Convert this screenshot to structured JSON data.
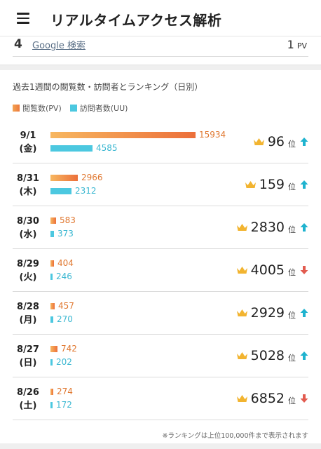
{
  "header": {
    "title": "リアルタイムアクセス解析",
    "menu_icon": "hamburger-icon"
  },
  "top_item": {
    "rank": "4",
    "link": "Google 検索",
    "count": "1",
    "unit": "PV"
  },
  "section": {
    "title": "過去1週間の閲覧数・訪問者とランキング（日別）",
    "legend_pv": "閲覧数(PV)",
    "legend_uu": "訪問者数(UU)",
    "rank_unit": "位"
  },
  "colors": {
    "pv_start": "#f7b760",
    "pv_end": "#ec6f3a",
    "uu": "#4cc8e0",
    "up": "#1fb3cf",
    "down": "#e25b4f",
    "crown": "#f2b430"
  },
  "days": [
    {
      "date": "9/1",
      "weekday": "(金)",
      "pv": 15934,
      "uu": 4585,
      "rank": "96",
      "trend": "up"
    },
    {
      "date": "8/31",
      "weekday": "(木)",
      "pv": 2966,
      "uu": 2312,
      "rank": "159",
      "trend": "up"
    },
    {
      "date": "8/30",
      "weekday": "(水)",
      "pv": 583,
      "uu": 373,
      "rank": "2830",
      "trend": "up"
    },
    {
      "date": "8/29",
      "weekday": "(火)",
      "pv": 404,
      "uu": 246,
      "rank": "4005",
      "trend": "down"
    },
    {
      "date": "8/28",
      "weekday": "(月)",
      "pv": 457,
      "uu": 270,
      "rank": "2929",
      "trend": "up"
    },
    {
      "date": "8/27",
      "weekday": "(日)",
      "pv": 742,
      "uu": 202,
      "rank": "5028",
      "trend": "up"
    },
    {
      "date": "8/26",
      "weekday": "(土)",
      "pv": 274,
      "uu": 172,
      "rank": "6852",
      "trend": "down"
    }
  ],
  "footnote": "※ランキングは上位100,000件まで表示されます"
}
